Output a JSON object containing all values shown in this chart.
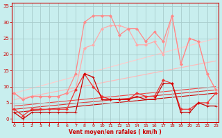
{
  "xlabel": "Vent moyen/en rafales ( km/h )",
  "xlim": [
    -0.3,
    23.3
  ],
  "ylim": [
    -1,
    36
  ],
  "yticks": [
    0,
    5,
    10,
    15,
    20,
    25,
    30,
    35
  ],
  "xticks": [
    0,
    1,
    2,
    3,
    4,
    5,
    6,
    7,
    8,
    9,
    10,
    11,
    12,
    13,
    14,
    15,
    16,
    17,
    18,
    19,
    20,
    21,
    22,
    23
  ],
  "background_color": "#c8eeee",
  "grid_color": "#a8cccc",
  "lines": [
    {
      "x": [
        0,
        1,
        2,
        3,
        4,
        5,
        6,
        7,
        8,
        9,
        10,
        11,
        12,
        13,
        14,
        15,
        16,
        17,
        18,
        19,
        20,
        21,
        22,
        23
      ],
      "y": [
        2,
        0,
        2,
        2,
        2,
        2,
        2,
        2,
        14,
        13,
        6,
        6,
        6,
        6,
        7,
        6,
        6,
        11,
        11,
        2,
        2,
        5,
        4,
        4
      ],
      "color": "#cc0000",
      "lw": 0.9,
      "marker": "+",
      "ms": 3.0,
      "zorder": 5
    },
    {
      "x": [
        0,
        1,
        2,
        3,
        4,
        5,
        6,
        7,
        8,
        9,
        10,
        11,
        12,
        13,
        14,
        15,
        16,
        17,
        18,
        19,
        20,
        21,
        22,
        23
      ],
      "y": [
        3,
        1,
        3,
        3,
        3,
        3,
        3,
        9,
        14,
        10,
        7,
        6,
        6,
        6,
        8,
        7,
        7,
        12,
        11,
        3,
        3,
        5,
        5,
        8
      ],
      "color": "#ee3333",
      "lw": 0.9,
      "marker": "D",
      "ms": 2.0,
      "zorder": 4
    },
    {
      "x": [
        0,
        1,
        2,
        3,
        4,
        5,
        6,
        7,
        8,
        9,
        10,
        11,
        12,
        13,
        14,
        15,
        16,
        17,
        18,
        19,
        20,
        21,
        22,
        23
      ],
      "y": [
        8,
        6,
        7,
        7,
        7,
        7,
        8,
        14,
        30,
        32,
        32,
        32,
        26,
        28,
        28,
        24,
        27,
        24,
        32,
        17,
        25,
        24,
        14,
        9
      ],
      "color": "#ff8888",
      "lw": 0.9,
      "marker": "D",
      "ms": 2.0,
      "zorder": 3
    },
    {
      "x": [
        0,
        1,
        2,
        3,
        4,
        5,
        6,
        7,
        8,
        9,
        10,
        11,
        12,
        13,
        14,
        15,
        16,
        17,
        18,
        19,
        20,
        21,
        22,
        23
      ],
      "y": [
        8,
        6,
        7,
        7,
        7,
        7,
        8,
        9,
        22,
        23,
        28,
        29,
        29,
        28,
        23,
        23,
        24,
        20,
        32,
        17,
        25,
        24,
        14,
        9
      ],
      "color": "#ffaaaa",
      "lw": 0.9,
      "marker": "D",
      "ms": 2.0,
      "zorder": 2
    },
    {
      "x": [
        0,
        23
      ],
      "y": [
        8,
        25
      ],
      "color": "#ffcccc",
      "lw": 0.9,
      "marker": null,
      "ms": 0,
      "zorder": 1
    },
    {
      "x": [
        0,
        23
      ],
      "y": [
        6,
        18
      ],
      "color": "#ffbbbb",
      "lw": 0.9,
      "marker": null,
      "ms": 0,
      "zorder": 1
    },
    {
      "x": [
        0,
        23
      ],
      "y": [
        2,
        8
      ],
      "color": "#cc0000",
      "lw": 0.8,
      "marker": null,
      "ms": 0,
      "zorder": 1
    },
    {
      "x": [
        0,
        23
      ],
      "y": [
        3,
        9
      ],
      "color": "#dd3333",
      "lw": 0.8,
      "marker": null,
      "ms": 0,
      "zorder": 1
    },
    {
      "x": [
        0,
        23
      ],
      "y": [
        4,
        10
      ],
      "color": "#ee4444",
      "lw": 0.8,
      "marker": null,
      "ms": 0,
      "zorder": 1
    }
  ]
}
